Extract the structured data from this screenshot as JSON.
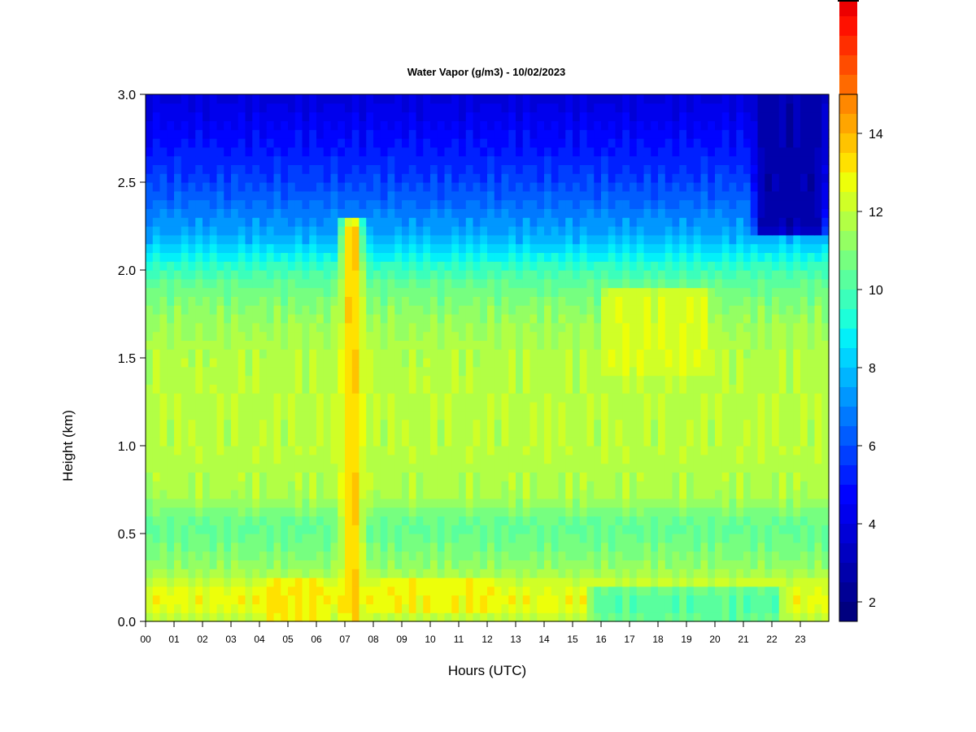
{
  "chart_data": {
    "type": "heatmap",
    "title": "Water Vapor (g/m3) - 10/02/2023",
    "xlabel": "Hours (UTC)",
    "ylabel": "Height (km)",
    "xlim": [
      0,
      24
    ],
    "ylim": [
      0,
      3
    ],
    "x_ticks": [
      "00",
      "01",
      "02",
      "03",
      "04",
      "05",
      "06",
      "07",
      "08",
      "09",
      "10",
      "11",
      "12",
      "13",
      "14",
      "15",
      "16",
      "17",
      "18",
      "19",
      "20",
      "21",
      "22",
      "23"
    ],
    "y_ticks": [
      "0.0",
      "0.5",
      "1.0",
      "1.5",
      "2.0",
      "2.5",
      "3.0"
    ],
    "colorbar": {
      "min": 1.5,
      "max": 15,
      "step": 0.5,
      "ticks": [
        "2",
        "4",
        "6",
        "8",
        "10",
        "12",
        "14"
      ],
      "colors": [
        "#00007f",
        "#000095",
        "#0000ab",
        "#0000c1",
        "#0000d7",
        "#0000ed",
        "#0003ff",
        "#0020ff",
        "#003eff",
        "#005cff",
        "#0079ff",
        "#0097ff",
        "#00b5ff",
        "#00d3ff",
        "#03f0f9",
        "#1dffd9",
        "#3bffbb",
        "#59ff9e",
        "#76ff80",
        "#94ff63",
        "#b2ff45",
        "#d0ff27",
        "#edff0a",
        "#ffe100",
        "#ffc300",
        "#ffa500",
        "#ff8800",
        "#ff6a00",
        "#ff4c00",
        "#ff2e00",
        "#ff1100",
        "#ed0000",
        "#d70000",
        "#c10000",
        "#ab0000"
      ]
    },
    "profile": {
      "heights_km": [
        0.0,
        0.1,
        0.2,
        0.3,
        0.45,
        0.55,
        0.65,
        0.7,
        1.0,
        1.2,
        1.5,
        1.7,
        1.9,
        2.0,
        2.2,
        2.5,
        2.8,
        3.0
      ],
      "values": [
        11.8,
        12.8,
        12.4,
        11.3,
        10.6,
        10.4,
        11.0,
        11.6,
        11.9,
        11.9,
        11.8,
        11.4,
        10.6,
        9.8,
        7.6,
        5.8,
        4.6,
        3.8
      ]
    },
    "features": [
      {
        "hours": [
          6.75,
          7.75
        ],
        "value": 13.3,
        "top_km": 2.3
      },
      {
        "hours": [
          4.0,
          6.5
        ],
        "value": 13.1,
        "bottom_km": 0.0,
        "top_km": 0.25
      },
      {
        "hours": [
          8.0,
          12.5
        ],
        "value": 12.9,
        "bottom_km": 0.05,
        "top_km": 0.25
      },
      {
        "hours": [
          16.0,
          20.0
        ],
        "value": 12.4,
        "bottom_km": 1.4,
        "top_km": 1.9
      },
      {
        "hours": [
          21.3,
          24.0
        ],
        "value": 2.8,
        "bottom_km": 2.2,
        "top_km": 3.0
      },
      {
        "hours": [
          15.5,
          22.5
        ],
        "value": 10.2,
        "bottom_km": 0.0,
        "top_km": 0.2
      }
    ]
  }
}
